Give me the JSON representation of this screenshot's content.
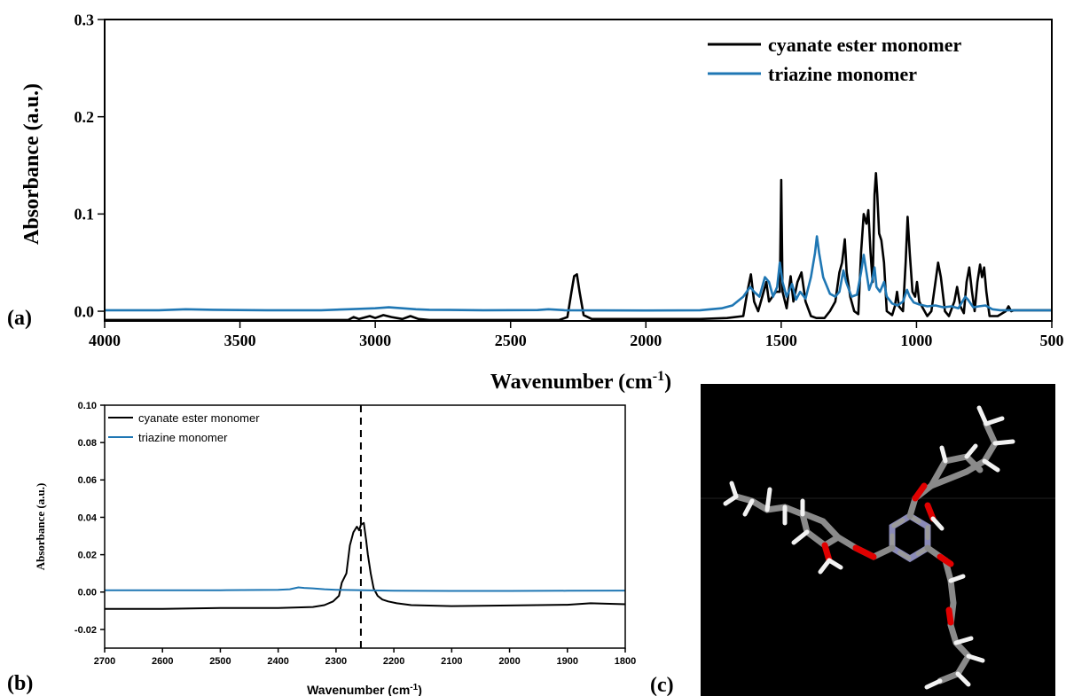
{
  "panel_labels": {
    "a": "(a)",
    "b": "(b)",
    "c": "(c)"
  },
  "colors": {
    "cyanate": "#000000",
    "triazine": "#1f77b4",
    "molecule_bg": "#000000"
  },
  "chart_data": [
    {
      "id": "a",
      "type": "line",
      "title": "",
      "xlabel": "Wavenumber (cm",
      "xlabel_sup": "-1",
      "xlabel_end": ")",
      "ylabel": "Absorbance (a.u.)",
      "xlim": [
        4000,
        500
      ],
      "ylim": [
        -0.01,
        0.3
      ],
      "xticks": [
        4000,
        3500,
        3000,
        2500,
        2000,
        1500,
        1000,
        500
      ],
      "xtick_labels": [
        "4000",
        "3500",
        "3000",
        "2500",
        "2000",
        "1500",
        "1000",
        "500"
      ],
      "yticks": [
        0.0,
        0.1,
        0.2,
        0.3
      ],
      "ytick_labels": [
        "0.0",
        "0.1",
        "0.2",
        "0.3"
      ],
      "legend_position": "top-right",
      "series": [
        {
          "name": "cyanate ester monomer",
          "color": "#000000",
          "points": [
            [
              4000,
              -0.009
            ],
            [
              3100,
              -0.009
            ],
            [
              3080,
              -0.006
            ],
            [
              3060,
              -0.008
            ],
            [
              3020,
              -0.005
            ],
            [
              3000,
              -0.007
            ],
            [
              2970,
              -0.004
            ],
            [
              2940,
              -0.006
            ],
            [
              2900,
              -0.008
            ],
            [
              2870,
              -0.005
            ],
            [
              2840,
              -0.008
            ],
            [
              2800,
              -0.009
            ],
            [
              2320,
              -0.009
            ],
            [
              2290,
              -0.006
            ],
            [
              2275,
              0.02
            ],
            [
              2265,
              0.036
            ],
            [
              2255,
              0.038
            ],
            [
              2245,
              0.02
            ],
            [
              2230,
              -0.004
            ],
            [
              2200,
              -0.008
            ],
            [
              1800,
              -0.008
            ],
            [
              1700,
              -0.007
            ],
            [
              1640,
              -0.005
            ],
            [
              1625,
              0.02
            ],
            [
              1612,
              0.038
            ],
            [
              1600,
              0.01
            ],
            [
              1585,
              0.0
            ],
            [
              1570,
              0.015
            ],
            [
              1555,
              0.03
            ],
            [
              1545,
              0.01
            ],
            [
              1520,
              0.02
            ],
            [
              1505,
              0.02
            ],
            [
              1500,
              0.135
            ],
            [
              1495,
              0.02
            ],
            [
              1480,
              0.003
            ],
            [
              1465,
              0.036
            ],
            [
              1455,
              0.01
            ],
            [
              1440,
              0.03
            ],
            [
              1425,
              0.04
            ],
            [
              1410,
              0.01
            ],
            [
              1390,
              -0.005
            ],
            [
              1370,
              -0.007
            ],
            [
              1340,
              -0.007
            ],
            [
              1320,
              0.0
            ],
            [
              1300,
              0.01
            ],
            [
              1285,
              0.04
            ],
            [
              1275,
              0.05
            ],
            [
              1265,
              0.074
            ],
            [
              1258,
              0.04
            ],
            [
              1245,
              0.015
            ],
            [
              1230,
              0.0
            ],
            [
              1215,
              -0.003
            ],
            [
              1205,
              0.06
            ],
            [
              1195,
              0.1
            ],
            [
              1185,
              0.09
            ],
            [
              1178,
              0.104
            ],
            [
              1170,
              0.06
            ],
            [
              1162,
              0.03
            ],
            [
              1155,
              0.12
            ],
            [
              1150,
              0.142
            ],
            [
              1145,
              0.12
            ],
            [
              1138,
              0.08
            ],
            [
              1130,
              0.073
            ],
            [
              1120,
              0.05
            ],
            [
              1110,
              0.0
            ],
            [
              1090,
              -0.004
            ],
            [
              1080,
              0.005
            ],
            [
              1072,
              0.02
            ],
            [
              1065,
              0.005
            ],
            [
              1050,
              0.0
            ],
            [
              1040,
              0.05
            ],
            [
              1033,
              0.097
            ],
            [
              1025,
              0.06
            ],
            [
              1015,
              0.02
            ],
            [
              1005,
              0.015
            ],
            [
              998,
              0.03
            ],
            [
              990,
              0.01
            ],
            [
              960,
              -0.005
            ],
            [
              945,
              0.0
            ],
            [
              930,
              0.03
            ],
            [
              920,
              0.05
            ],
            [
              910,
              0.035
            ],
            [
              895,
              0.0
            ],
            [
              880,
              -0.005
            ],
            [
              860,
              0.01
            ],
            [
              850,
              0.025
            ],
            [
              838,
              0.005
            ],
            [
              825,
              -0.002
            ],
            [
              815,
              0.03
            ],
            [
              805,
              0.045
            ],
            [
              795,
              0.02
            ],
            [
              785,
              0.0
            ],
            [
              775,
              0.03
            ],
            [
              765,
              0.048
            ],
            [
              758,
              0.035
            ],
            [
              750,
              0.045
            ],
            [
              742,
              0.02
            ],
            [
              730,
              -0.005
            ],
            [
              700,
              -0.005
            ],
            [
              670,
              0.0
            ],
            [
              660,
              0.005
            ],
            [
              650,
              0.0
            ],
            [
              640,
              0.001
            ],
            [
              500,
              0.001
            ]
          ]
        },
        {
          "name": "triazine monomer",
          "color": "#1f77b4",
          "points": [
            [
              4000,
              0.001
            ],
            [
              3800,
              0.001
            ],
            [
              3700,
              0.002
            ],
            [
              3600,
              0.0015
            ],
            [
              3400,
              0.001
            ],
            [
              3200,
              0.001
            ],
            [
              3100,
              0.002
            ],
            [
              3000,
              0.003
            ],
            [
              2950,
              0.004
            ],
            [
              2900,
              0.003
            ],
            [
              2850,
              0.002
            ],
            [
              2800,
              0.0015
            ],
            [
              2600,
              0.001
            ],
            [
              2400,
              0.0012
            ],
            [
              2360,
              0.002
            ],
            [
              2300,
              0.001
            ],
            [
              2000,
              0.0008
            ],
            [
              1800,
              0.001
            ],
            [
              1720,
              0.003
            ],
            [
              1680,
              0.006
            ],
            [
              1640,
              0.015
            ],
            [
              1615,
              0.025
            ],
            [
              1600,
              0.02
            ],
            [
              1580,
              0.015
            ],
            [
              1560,
              0.035
            ],
            [
              1545,
              0.03
            ],
            [
              1530,
              0.015
            ],
            [
              1515,
              0.025
            ],
            [
              1505,
              0.05
            ],
            [
              1495,
              0.03
            ],
            [
              1480,
              0.015
            ],
            [
              1460,
              0.028
            ],
            [
              1445,
              0.012
            ],
            [
              1430,
              0.02
            ],
            [
              1410,
              0.013
            ],
            [
              1390,
              0.035
            ],
            [
              1375,
              0.06
            ],
            [
              1368,
              0.077
            ],
            [
              1360,
              0.06
            ],
            [
              1345,
              0.035
            ],
            [
              1320,
              0.018
            ],
            [
              1300,
              0.015
            ],
            [
              1285,
              0.02
            ],
            [
              1270,
              0.042
            ],
            [
              1260,
              0.03
            ],
            [
              1240,
              0.015
            ],
            [
              1220,
              0.017
            ],
            [
              1205,
              0.04
            ],
            [
              1195,
              0.058
            ],
            [
              1185,
              0.04
            ],
            [
              1175,
              0.022
            ],
            [
              1165,
              0.03
            ],
            [
              1155,
              0.045
            ],
            [
              1148,
              0.025
            ],
            [
              1135,
              0.02
            ],
            [
              1120,
              0.03
            ],
            [
              1110,
              0.015
            ],
            [
              1090,
              0.008
            ],
            [
              1070,
              0.006
            ],
            [
              1050,
              0.01
            ],
            [
              1035,
              0.022
            ],
            [
              1025,
              0.015
            ],
            [
              1010,
              0.009
            ],
            [
              990,
              0.007
            ],
            [
              960,
              0.005
            ],
            [
              930,
              0.006
            ],
            [
              900,
              0.004
            ],
            [
              870,
              0.005
            ],
            [
              845,
              0.003
            ],
            [
              820,
              0.015
            ],
            [
              810,
              0.012
            ],
            [
              790,
              0.004
            ],
            [
              770,
              0.005
            ],
            [
              745,
              0.006
            ],
            [
              720,
              0.002
            ],
            [
              690,
              0.001
            ],
            [
              500,
              0.001
            ]
          ]
        }
      ]
    },
    {
      "id": "b",
      "type": "line",
      "title": "",
      "xlabel": "Wavenumber (cm",
      "xlabel_sup": "-1",
      "xlabel_end": ")",
      "ylabel": "Absorbance (a.u.)",
      "xlim": [
        2700,
        1800
      ],
      "ylim": [
        -0.03,
        0.1
      ],
      "xticks": [
        2700,
        2600,
        2500,
        2400,
        2300,
        2200,
        2100,
        2000,
        1900,
        1800
      ],
      "xtick_labels": [
        "2700",
        "2600",
        "2500",
        "2400",
        "2300",
        "2200",
        "2100",
        "2000",
        "1900",
        "1800"
      ],
      "yticks": [
        -0.02,
        0.0,
        0.02,
        0.04,
        0.06,
        0.08,
        0.1
      ],
      "ytick_labels": [
        "-0.02",
        "0.00",
        "0.02",
        "0.04",
        "0.06",
        "0.08",
        "0.10"
      ],
      "legend_position": "top-left",
      "reference_line_x": 2257,
      "series": [
        {
          "name": "cyanate ester monomer",
          "color": "#000000",
          "points": [
            [
              2700,
              -0.009
            ],
            [
              2600,
              -0.009
            ],
            [
              2500,
              -0.0085
            ],
            [
              2400,
              -0.0085
            ],
            [
              2340,
              -0.008
            ],
            [
              2320,
              -0.007
            ],
            [
              2305,
              -0.005
            ],
            [
              2295,
              -0.002
            ],
            [
              2290,
              0.005
            ],
            [
              2282,
              0.01
            ],
            [
              2276,
              0.025
            ],
            [
              2270,
              0.032
            ],
            [
              2264,
              0.035
            ],
            [
              2260,
              0.033
            ],
            [
              2257,
              0.036
            ],
            [
              2252,
              0.037
            ],
            [
              2248,
              0.028
            ],
            [
              2245,
              0.02
            ],
            [
              2240,
              0.01
            ],
            [
              2235,
              0.002
            ],
            [
              2228,
              -0.002
            ],
            [
              2220,
              -0.004
            ],
            [
              2210,
              -0.005
            ],
            [
              2195,
              -0.006
            ],
            [
              2170,
              -0.007
            ],
            [
              2100,
              -0.0075
            ],
            [
              2000,
              -0.0072
            ],
            [
              1900,
              -0.0068
            ],
            [
              1860,
              -0.006
            ],
            [
              1800,
              -0.0065
            ]
          ]
        },
        {
          "name": "triazine monomer",
          "color": "#1f77b4",
          "points": [
            [
              2700,
              0.001
            ],
            [
              2500,
              0.001
            ],
            [
              2400,
              0.0012
            ],
            [
              2380,
              0.0015
            ],
            [
              2365,
              0.0025
            ],
            [
              2355,
              0.0022
            ],
            [
              2340,
              0.002
            ],
            [
              2320,
              0.0015
            ],
            [
              2300,
              0.0012
            ],
            [
              2250,
              0.001
            ],
            [
              2200,
              0.0007
            ],
            [
              2100,
              0.0006
            ],
            [
              2000,
              0.0006
            ],
            [
              1900,
              0.0007
            ],
            [
              1800,
              0.0008
            ]
          ]
        }
      ]
    }
  ]
}
